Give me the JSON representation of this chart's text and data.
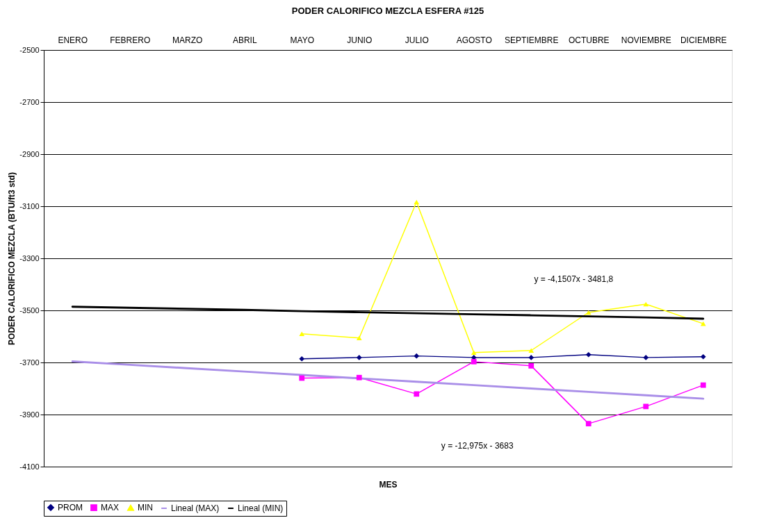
{
  "chart_data": {
    "type": "line",
    "title": "PODER CALORIFICO MEZCLA ESFERA #125",
    "xlabel": "MES",
    "ylabel": "PODER CALORIFICO MEZCLA (BTU/ft3 std)",
    "categories": [
      "ENERO",
      "FEBRERO",
      "MARZO",
      "ABRIL",
      "MAYO",
      "JUNIO",
      "JULIO",
      "AGOSTO",
      "SEPTIEMBRE",
      "OCTUBRE",
      "NOVIEMBRE",
      "DICIEMBRE"
    ],
    "series": [
      {
        "name": "PROM",
        "color": "#000080",
        "marker": "diamond",
        "values": [
          null,
          null,
          null,
          null,
          -3686,
          -3681,
          -3675,
          -3681,
          -3681,
          -3670,
          -3681,
          -3678
        ]
      },
      {
        "name": "MAX",
        "color": "#ff00ff",
        "marker": "square",
        "values": [
          null,
          null,
          null,
          null,
          -3760,
          -3758,
          -3821,
          -3697,
          -3713,
          -3935,
          -3869,
          -3787
        ]
      },
      {
        "name": "MIN",
        "color": "#ffff00",
        "marker": "triangle",
        "values": [
          null,
          null,
          null,
          null,
          -3590,
          -3606,
          -3084,
          -3662,
          -3654,
          -3508,
          -3476,
          -3551
        ]
      },
      {
        "name": "Lineal (MAX)",
        "color": "#a98ee8",
        "marker": "none",
        "values": [
          -3696,
          -3709,
          -3722,
          -3735,
          -3748,
          -3761,
          -3774,
          -3787,
          -3800,
          -3813,
          -3826,
          -3839
        ]
      },
      {
        "name": "Lineal (MIN)",
        "color": "#000000",
        "marker": "none",
        "values": [
          -3486,
          -3490,
          -3494,
          -3498,
          -3503,
          -3507,
          -3511,
          -3515,
          -3519,
          -3523,
          -3527,
          -3532
        ]
      }
    ],
    "annotations": [
      "y = -4,1507x - 3481,8",
      "y = -12,975x - 3683"
    ],
    "ylim": [
      -4100,
      -2500
    ],
    "yticks": [
      -4100,
      -3900,
      -3700,
      -3500,
      -3300,
      -3100,
      -2900,
      -2700,
      -2500
    ],
    "grid": "y",
    "legend": "bottom"
  }
}
